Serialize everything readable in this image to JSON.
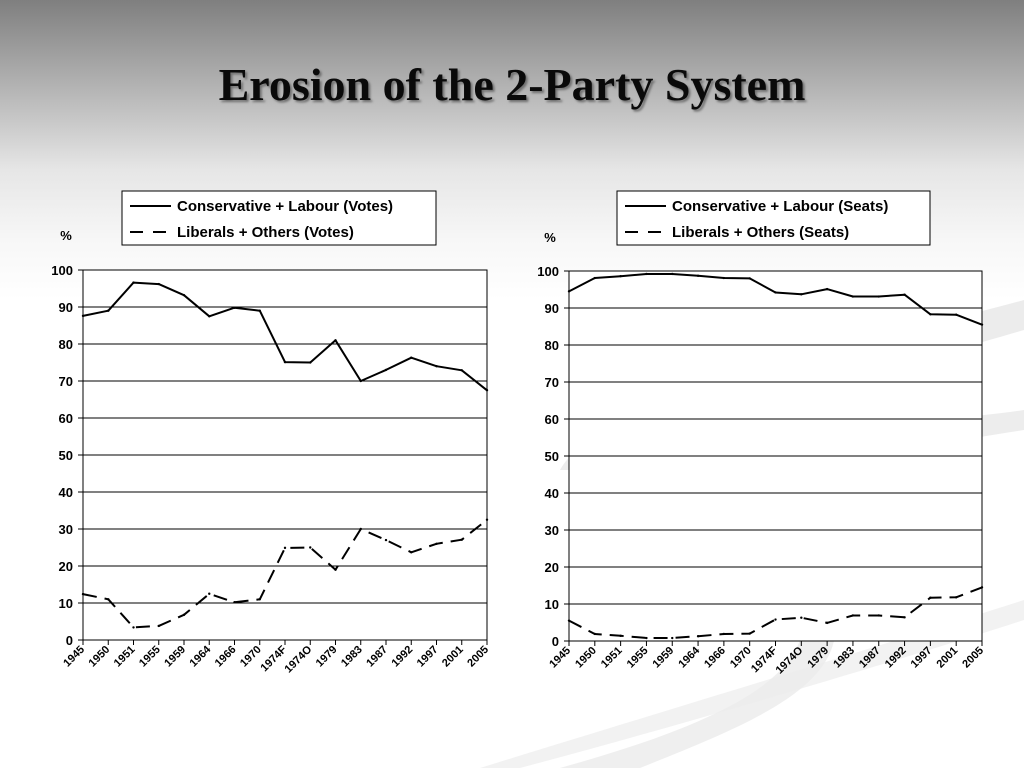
{
  "slide": {
    "title": "Erosion of  the 2-Party System"
  },
  "chart_data": [
    {
      "type": "line",
      "ylabel": "%",
      "ylim": [
        0,
        100
      ],
      "yticks": [
        0,
        10,
        20,
        30,
        40,
        50,
        60,
        70,
        80,
        90,
        100
      ],
      "grid": true,
      "legend_position": "top",
      "categories": [
        "1945",
        "1950",
        "1951",
        "1955",
        "1959",
        "1964",
        "1966",
        "1970",
        "1974F",
        "1974O",
        "1979",
        "1983",
        "1987",
        "1992",
        "1997",
        "2001",
        "2005"
      ],
      "series": [
        {
          "name": "Conservative + Labour (Votes)",
          "style": "solid",
          "color": "#000000",
          "values": [
            87.6,
            89.0,
            96.6,
            96.2,
            93.2,
            87.5,
            89.8,
            89.0,
            75.1,
            75.0,
            81.0,
            70.0,
            73.0,
            76.3,
            74.0,
            72.9,
            67.5
          ]
        },
        {
          "name": "Liberals + Others (Votes)",
          "style": "dashed",
          "color": "#000000",
          "values": [
            12.4,
            11.0,
            3.4,
            3.8,
            6.8,
            12.5,
            10.2,
            11.0,
            24.9,
            25.0,
            19.0,
            30.0,
            27.0,
            23.7,
            26.0,
            27.1,
            32.5
          ]
        }
      ]
    },
    {
      "type": "line",
      "ylabel": "%",
      "ylim": [
        0,
        100
      ],
      "yticks": [
        0,
        10,
        20,
        30,
        40,
        50,
        60,
        70,
        80,
        90,
        100
      ],
      "grid": true,
      "legend_position": "top",
      "categories": [
        "1945",
        "1950",
        "1951",
        "1955",
        "1959",
        "1964",
        "1966",
        "1970",
        "1974F",
        "1974O",
        "1979",
        "1983",
        "1987",
        "1992",
        "1997",
        "2001",
        "2005"
      ],
      "series": [
        {
          "name": "Conservative + Labour (Seats)",
          "style": "solid",
          "color": "#000000",
          "values": [
            94.5,
            98.1,
            98.6,
            99.2,
            99.2,
            98.7,
            98.1,
            98.0,
            94.2,
            93.7,
            95.1,
            93.1,
            93.1,
            93.6,
            88.3,
            88.2,
            85.5
          ]
        },
        {
          "name": "Liberals + Others (Seats)",
          "style": "dashed",
          "color": "#000000",
          "values": [
            5.5,
            1.9,
            1.4,
            0.8,
            0.8,
            1.3,
            1.9,
            2.0,
            5.8,
            6.3,
            4.9,
            6.9,
            6.9,
            6.4,
            11.7,
            11.8,
            14.5
          ]
        }
      ]
    }
  ]
}
